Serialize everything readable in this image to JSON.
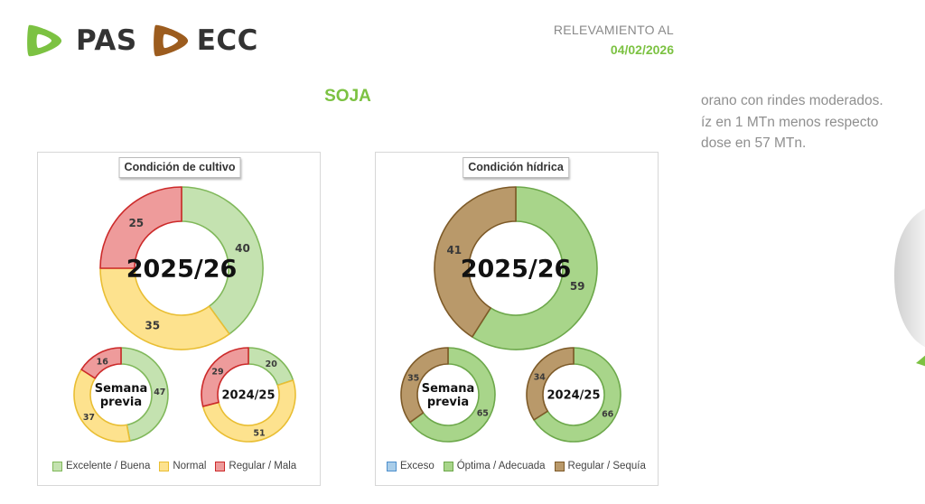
{
  "header": {
    "logo_left": "PAS",
    "logo_right": "ECC",
    "report_label": "RELEVAMIENTO AL",
    "report_date": "04/02/2026"
  },
  "crop_title": "SOJA",
  "side_text": [
    "orano con rindes moderados.",
    "íz en 1 MTn menos respecto",
    "dose en 57 MTn."
  ],
  "colors": {
    "brand_green": "#7cc242",
    "brand_brown": "#9c5c1e"
  },
  "chart_data": [
    {
      "type": "pie",
      "title": "Condición de cultivo",
      "categories": [
        "Excelente / Buena",
        "Normal",
        "Regular / Mala"
      ],
      "colors": [
        "#c4e2b0",
        "#fde28e",
        "#ee9b9b"
      ],
      "stroke_colors": [
        "#80b85a",
        "#e9be33",
        "#cc2a2a"
      ],
      "series": [
        {
          "name": "2025/26",
          "values": [
            40,
            35,
            25
          ]
        },
        {
          "name": "Semana previa",
          "values": [
            47,
            37,
            16
          ]
        },
        {
          "name": "2024/25",
          "values": [
            20,
            51,
            29
          ]
        }
      ]
    },
    {
      "type": "pie",
      "title": "Condición hídrica",
      "categories": [
        "Exceso",
        "Óptima / Adecuada",
        "Regular / Sequía"
      ],
      "colors": [
        "#a9cde9",
        "#a8d58a",
        "#b9996a"
      ],
      "stroke_colors": [
        "#4d8fcc",
        "#6da84b",
        "#7d5a28"
      ],
      "series": [
        {
          "name": "2025/26",
          "values": [
            0,
            59,
            41
          ]
        },
        {
          "name": "Semana previa",
          "values": [
            0,
            65,
            35
          ]
        },
        {
          "name": "2024/25",
          "values": [
            0,
            66,
            34
          ]
        }
      ]
    }
  ]
}
